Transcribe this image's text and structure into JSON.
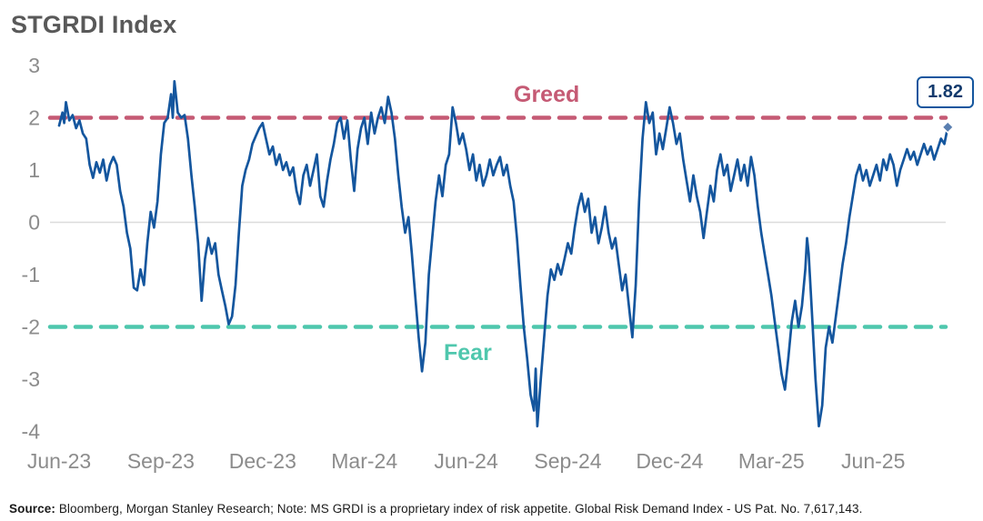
{
  "title": "STGRDI Index",
  "chart_data": {
    "type": "line",
    "title": "STGRDI Index",
    "series_name": "STGRDI",
    "x_unit": "months since Jun-2023",
    "ylim": [
      -4,
      3
    ],
    "grid": "zero-line only",
    "legend": "none",
    "line_color": "#14569e",
    "greed_color": "#c55a74",
    "fear_color": "#4fc7ad",
    "greed_label": "Greed",
    "fear_label": "Fear",
    "greed_level": 2,
    "fear_level": -2,
    "last_value_label": "1.82",
    "yticks": [
      3,
      2,
      1,
      0,
      -1,
      -2,
      -3,
      -4
    ],
    "xticks": [
      {
        "m": 0,
        "label": "Jun-23"
      },
      {
        "m": 3,
        "label": "Sep-23"
      },
      {
        "m": 6,
        "label": "Dec-23"
      },
      {
        "m": 9,
        "label": "Mar-24"
      },
      {
        "m": 12,
        "label": "Jun-24"
      },
      {
        "m": 15,
        "label": "Sep-24"
      },
      {
        "m": 18,
        "label": "Dec-24"
      },
      {
        "m": 21,
        "label": "Mar-25"
      },
      {
        "m": 24,
        "label": "Jun-25"
      }
    ],
    "points": [
      [
        0,
        1.85
      ],
      [
        0.1,
        2.1
      ],
      [
        0.15,
        1.9
      ],
      [
        0.2,
        2.3
      ],
      [
        0.3,
        1.95
      ],
      [
        0.4,
        2.05
      ],
      [
        0.5,
        1.8
      ],
      [
        0.6,
        1.95
      ],
      [
        0.7,
        1.7
      ],
      [
        0.8,
        1.6
      ],
      [
        0.9,
        1.1
      ],
      [
        1,
        0.85
      ],
      [
        1.1,
        1.15
      ],
      [
        1.2,
        0.95
      ],
      [
        1.3,
        1.2
      ],
      [
        1.4,
        0.8
      ],
      [
        1.5,
        1.1
      ],
      [
        1.6,
        1.25
      ],
      [
        1.7,
        1.1
      ],
      [
        1.8,
        0.6
      ],
      [
        1.9,
        0.3
      ],
      [
        2,
        -0.2
      ],
      [
        2.1,
        -0.5
      ],
      [
        2.2,
        -1.25
      ],
      [
        2.3,
        -1.3
      ],
      [
        2.4,
        -0.9
      ],
      [
        2.5,
        -1.2
      ],
      [
        2.6,
        -0.4
      ],
      [
        2.7,
        0.2
      ],
      [
        2.8,
        -0.1
      ],
      [
        2.9,
        0.4
      ],
      [
        3,
        1.3
      ],
      [
        3.1,
        1.9
      ],
      [
        3.2,
        2
      ],
      [
        3.3,
        2.45
      ],
      [
        3.35,
        2
      ],
      [
        3.4,
        2.7
      ],
      [
        3.5,
        2.1
      ],
      [
        3.6,
        2
      ],
      [
        3.7,
        2.05
      ],
      [
        3.8,
        1.6
      ],
      [
        3.9,
        0.9
      ],
      [
        4,
        0.3
      ],
      [
        4.1,
        -0.4
      ],
      [
        4.2,
        -1.5
      ],
      [
        4.3,
        -0.7
      ],
      [
        4.4,
        -0.3
      ],
      [
        4.5,
        -0.6
      ],
      [
        4.6,
        -0.4
      ],
      [
        4.7,
        -1
      ],
      [
        4.8,
        -1.3
      ],
      [
        4.9,
        -1.6
      ],
      [
        5,
        -1.95
      ],
      [
        5.1,
        -1.8
      ],
      [
        5.2,
        -1.2
      ],
      [
        5.3,
        -0.2
      ],
      [
        5.4,
        0.7
      ],
      [
        5.5,
        1
      ],
      [
        5.6,
        1.2
      ],
      [
        5.7,
        1.5
      ],
      [
        5.8,
        1.65
      ],
      [
        5.9,
        1.8
      ],
      [
        6,
        1.9
      ],
      [
        6.1,
        1.6
      ],
      [
        6.2,
        1.3
      ],
      [
        6.3,
        1.45
      ],
      [
        6.4,
        1.1
      ],
      [
        6.5,
        1.3
      ],
      [
        6.6,
        1
      ],
      [
        6.7,
        1.15
      ],
      [
        6.8,
        0.9
      ],
      [
        6.9,
        1.05
      ],
      [
        7,
        0.6
      ],
      [
        7.1,
        0.35
      ],
      [
        7.2,
        0.9
      ],
      [
        7.3,
        1.1
      ],
      [
        7.4,
        0.7
      ],
      [
        7.5,
        1
      ],
      [
        7.6,
        1.3
      ],
      [
        7.7,
        0.5
      ],
      [
        7.8,
        0.3
      ],
      [
        7.9,
        0.8
      ],
      [
        8,
        1.2
      ],
      [
        8.1,
        1.5
      ],
      [
        8.2,
        1.9
      ],
      [
        8.3,
        2
      ],
      [
        8.4,
        1.6
      ],
      [
        8.5,
        1.95
      ],
      [
        8.6,
        1.2
      ],
      [
        8.7,
        0.6
      ],
      [
        8.8,
        1.4
      ],
      [
        8.9,
        1.8
      ],
      [
        9,
        2
      ],
      [
        9.1,
        1.5
      ],
      [
        9.2,
        2.1
      ],
      [
        9.3,
        1.7
      ],
      [
        9.4,
        2
      ],
      [
        9.5,
        2.2
      ],
      [
        9.6,
        1.9
      ],
      [
        9.7,
        2.4
      ],
      [
        9.8,
        2.1
      ],
      [
        9.9,
        1.6
      ],
      [
        10,
        0.9
      ],
      [
        10.1,
        0.3
      ],
      [
        10.2,
        -0.2
      ],
      [
        10.3,
        0.1
      ],
      [
        10.4,
        -0.6
      ],
      [
        10.5,
        -1.4
      ],
      [
        10.6,
        -2.2
      ],
      [
        10.7,
        -2.85
      ],
      [
        10.8,
        -2.3
      ],
      [
        10.9,
        -1
      ],
      [
        11,
        -0.3
      ],
      [
        11.1,
        0.4
      ],
      [
        11.2,
        0.9
      ],
      [
        11.3,
        0.5
      ],
      [
        11.4,
        1.1
      ],
      [
        11.5,
        1.3
      ],
      [
        11.6,
        2.2
      ],
      [
        11.7,
        1.9
      ],
      [
        11.8,
        1.5
      ],
      [
        11.9,
        1.7
      ],
      [
        12,
        1.4
      ],
      [
        12.1,
        1
      ],
      [
        12.2,
        1.3
      ],
      [
        12.3,
        0.8
      ],
      [
        12.4,
        1.1
      ],
      [
        12.5,
        0.7
      ],
      [
        12.6,
        0.9
      ],
      [
        12.7,
        1.2
      ],
      [
        12.8,
        0.9
      ],
      [
        12.9,
        1.1
      ],
      [
        13,
        1.25
      ],
      [
        13.1,
        0.9
      ],
      [
        13.2,
        1.1
      ],
      [
        13.3,
        0.7
      ],
      [
        13.4,
        0.4
      ],
      [
        13.5,
        -0.3
      ],
      [
        13.6,
        -1.2
      ],
      [
        13.7,
        -2
      ],
      [
        13.8,
        -2.6
      ],
      [
        13.9,
        -3.3
      ],
      [
        14,
        -3.6
      ],
      [
        14.05,
        -2.8
      ],
      [
        14.1,
        -3.9
      ],
      [
        14.2,
        -3
      ],
      [
        14.3,
        -2.2
      ],
      [
        14.4,
        -1.4
      ],
      [
        14.5,
        -0.9
      ],
      [
        14.6,
        -1.1
      ],
      [
        14.7,
        -0.8
      ],
      [
        14.8,
        -1
      ],
      [
        14.9,
        -0.7
      ],
      [
        15,
        -0.4
      ],
      [
        15.1,
        -0.6
      ],
      [
        15.2,
        -0.1
      ],
      [
        15.3,
        0.3
      ],
      [
        15.4,
        0.55
      ],
      [
        15.5,
        0.2
      ],
      [
        15.6,
        0.45
      ],
      [
        15.7,
        -0.2
      ],
      [
        15.8,
        0.1
      ],
      [
        15.9,
        -0.4
      ],
      [
        16,
        -0.1
      ],
      [
        16.1,
        0.3
      ],
      [
        16.2,
        -0.2
      ],
      [
        16.3,
        -0.5
      ],
      [
        16.4,
        -0.3
      ],
      [
        16.5,
        -0.8
      ],
      [
        16.6,
        -1.3
      ],
      [
        16.7,
        -1
      ],
      [
        16.8,
        -1.6
      ],
      [
        16.9,
        -2.2
      ],
      [
        17,
        -1.2
      ],
      [
        17.1,
        0.4
      ],
      [
        17.2,
        1.6
      ],
      [
        17.3,
        2.3
      ],
      [
        17.4,
        1.9
      ],
      [
        17.5,
        2.1
      ],
      [
        17.6,
        1.3
      ],
      [
        17.7,
        1.7
      ],
      [
        17.8,
        1.4
      ],
      [
        17.9,
        1.8
      ],
      [
        18,
        2.2
      ],
      [
        18.1,
        1.9
      ],
      [
        18.2,
        1.5
      ],
      [
        18.3,
        1.7
      ],
      [
        18.4,
        1.2
      ],
      [
        18.5,
        0.8
      ],
      [
        18.6,
        0.4
      ],
      [
        18.7,
        0.9
      ],
      [
        18.8,
        0.5
      ],
      [
        18.9,
        0.2
      ],
      [
        19,
        -0.3
      ],
      [
        19.1,
        0.2
      ],
      [
        19.2,
        0.7
      ],
      [
        19.3,
        0.4
      ],
      [
        19.4,
        1
      ],
      [
        19.5,
        1.3
      ],
      [
        19.6,
        0.9
      ],
      [
        19.7,
        1.1
      ],
      [
        19.8,
        0.6
      ],
      [
        19.9,
        0.9
      ],
      [
        20,
        1.2
      ],
      [
        20.1,
        0.8
      ],
      [
        20.2,
        1.1
      ],
      [
        20.3,
        0.7
      ],
      [
        20.4,
        1.25
      ],
      [
        20.5,
        0.9
      ],
      [
        20.6,
        0.3
      ],
      [
        20.7,
        -0.2
      ],
      [
        20.8,
        -0.6
      ],
      [
        20.9,
        -1
      ],
      [
        21,
        -1.4
      ],
      [
        21.1,
        -1.9
      ],
      [
        21.2,
        -2.4
      ],
      [
        21.3,
        -2.9
      ],
      [
        21.4,
        -3.2
      ],
      [
        21.5,
        -2.6
      ],
      [
        21.6,
        -1.9
      ],
      [
        21.7,
        -1.5
      ],
      [
        21.8,
        -2
      ],
      [
        21.9,
        -1.6
      ],
      [
        22,
        -0.9
      ],
      [
        22.05,
        -0.3
      ],
      [
        22.1,
        -0.6
      ],
      [
        22.2,
        -1.8
      ],
      [
        22.3,
        -3
      ],
      [
        22.4,
        -3.9
      ],
      [
        22.5,
        -3.5
      ],
      [
        22.6,
        -2.4
      ],
      [
        22.7,
        -2
      ],
      [
        22.8,
        -2.3
      ],
      [
        22.9,
        -1.8
      ],
      [
        23,
        -1.3
      ],
      [
        23.1,
        -0.8
      ],
      [
        23.2,
        -0.4
      ],
      [
        23.3,
        0.1
      ],
      [
        23.4,
        0.5
      ],
      [
        23.5,
        0.9
      ],
      [
        23.6,
        1.1
      ],
      [
        23.7,
        0.8
      ],
      [
        23.8,
        1
      ],
      [
        23.9,
        0.7
      ],
      [
        24,
        0.9
      ],
      [
        24.1,
        1.1
      ],
      [
        24.2,
        0.8
      ],
      [
        24.3,
        1.2
      ],
      [
        24.4,
        1
      ],
      [
        24.5,
        1.3
      ],
      [
        24.6,
        1.1
      ],
      [
        24.7,
        0.7
      ],
      [
        24.8,
        1
      ],
      [
        24.9,
        1.2
      ],
      [
        25,
        1.4
      ],
      [
        25.1,
        1.2
      ],
      [
        25.2,
        1.35
      ],
      [
        25.3,
        1.1
      ],
      [
        25.4,
        1.3
      ],
      [
        25.5,
        1.5
      ],
      [
        25.6,
        1.3
      ],
      [
        25.7,
        1.45
      ],
      [
        25.8,
        1.2
      ],
      [
        25.9,
        1.4
      ],
      [
        26,
        1.6
      ],
      [
        26.1,
        1.5
      ],
      [
        26.2,
        1.82
      ]
    ]
  },
  "footer": {
    "source_label": "Source:",
    "text": " Bloomberg, Morgan Stanley Research; Note: MS GRDI is a proprietary index of risk appetite. Global Risk Demand Index - US Pat. No. 7,617,143."
  }
}
